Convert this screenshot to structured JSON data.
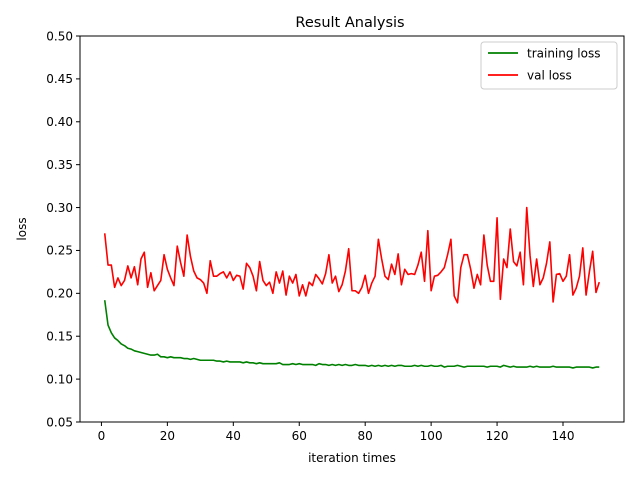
{
  "chart_data": {
    "type": "line",
    "title": "Result Analysis",
    "xlabel": "iteration times",
    "ylabel": "loss",
    "xlim": [
      -6.5,
      158.5
    ],
    "ylim": [
      0.05,
      0.5
    ],
    "xticks": [
      0,
      20,
      40,
      60,
      80,
      100,
      120,
      140
    ],
    "yticks": [
      0.05,
      0.1,
      0.15,
      0.2,
      0.25,
      0.3,
      0.35,
      0.4,
      0.45,
      0.5
    ],
    "ytick_labels": [
      "0.05",
      "0.10",
      "0.15",
      "0.20",
      "0.25",
      "0.30",
      "0.35",
      "0.40",
      "0.45",
      "0.50"
    ],
    "grid": false,
    "legend_position": "top-right",
    "x": [
      1,
      2,
      3,
      4,
      5,
      6,
      7,
      8,
      9,
      10,
      11,
      12,
      13,
      14,
      15,
      16,
      17,
      18,
      19,
      20,
      21,
      22,
      23,
      24,
      25,
      26,
      27,
      28,
      29,
      30,
      31,
      32,
      33,
      34,
      35,
      36,
      37,
      38,
      39,
      40,
      41,
      42,
      43,
      44,
      45,
      46,
      47,
      48,
      49,
      50,
      51,
      52,
      53,
      54,
      55,
      56,
      57,
      58,
      59,
      60,
      61,
      62,
      63,
      64,
      65,
      66,
      67,
      68,
      69,
      70,
      71,
      72,
      73,
      74,
      75,
      76,
      77,
      78,
      79,
      80,
      81,
      82,
      83,
      84,
      85,
      86,
      87,
      88,
      89,
      90,
      91,
      92,
      93,
      94,
      95,
      96,
      97,
      98,
      99,
      100,
      101,
      102,
      103,
      104,
      105,
      106,
      107,
      108,
      109,
      110,
      111,
      112,
      113,
      114,
      115,
      116,
      117,
      118,
      119,
      120,
      121,
      122,
      123,
      124,
      125,
      126,
      127,
      128,
      129,
      130,
      131,
      132,
      133,
      134,
      135,
      136,
      137,
      138,
      139,
      140,
      141,
      142,
      143,
      144,
      145,
      146,
      147,
      148,
      149,
      150,
      151
    ],
    "series": [
      {
        "name": "training loss",
        "color": "#008000",
        "values": [
          0.192,
          0.163,
          0.154,
          0.148,
          0.145,
          0.141,
          0.139,
          0.136,
          0.135,
          0.133,
          0.132,
          0.131,
          0.13,
          0.129,
          0.128,
          0.128,
          0.129,
          0.126,
          0.126,
          0.125,
          0.126,
          0.125,
          0.125,
          0.125,
          0.124,
          0.124,
          0.123,
          0.124,
          0.123,
          0.122,
          0.122,
          0.122,
          0.122,
          0.122,
          0.121,
          0.121,
          0.12,
          0.121,
          0.12,
          0.12,
          0.12,
          0.12,
          0.119,
          0.12,
          0.119,
          0.119,
          0.118,
          0.119,
          0.118,
          0.118,
          0.118,
          0.118,
          0.118,
          0.119,
          0.117,
          0.117,
          0.117,
          0.118,
          0.117,
          0.118,
          0.117,
          0.117,
          0.117,
          0.117,
          0.116,
          0.118,
          0.117,
          0.117,
          0.116,
          0.117,
          0.116,
          0.117,
          0.116,
          0.117,
          0.116,
          0.116,
          0.117,
          0.116,
          0.116,
          0.116,
          0.115,
          0.116,
          0.115,
          0.116,
          0.115,
          0.116,
          0.115,
          0.116,
          0.115,
          0.116,
          0.116,
          0.115,
          0.115,
          0.115,
          0.116,
          0.115,
          0.116,
          0.115,
          0.115,
          0.116,
          0.115,
          0.115,
          0.116,
          0.114,
          0.115,
          0.115,
          0.115,
          0.116,
          0.115,
          0.114,
          0.115,
          0.115,
          0.115,
          0.115,
          0.115,
          0.115,
          0.114,
          0.115,
          0.115,
          0.115,
          0.114,
          0.116,
          0.115,
          0.114,
          0.115,
          0.114,
          0.114,
          0.114,
          0.114,
          0.115,
          0.114,
          0.115,
          0.114,
          0.114,
          0.114,
          0.114,
          0.115,
          0.114,
          0.114,
          0.114,
          0.114,
          0.114,
          0.113,
          0.114,
          0.114,
          0.114,
          0.114,
          0.114,
          0.113,
          0.114,
          0.114
        ]
      },
      {
        "name": "val loss",
        "color": "#ff0000",
        "values": [
          0.27,
          0.233,
          0.233,
          0.207,
          0.218,
          0.209,
          0.215,
          0.232,
          0.218,
          0.231,
          0.21,
          0.24,
          0.248,
          0.207,
          0.224,
          0.203,
          0.209,
          0.215,
          0.245,
          0.228,
          0.218,
          0.209,
          0.255,
          0.236,
          0.22,
          0.268,
          0.243,
          0.226,
          0.218,
          0.216,
          0.212,
          0.2,
          0.238,
          0.22,
          0.22,
          0.223,
          0.225,
          0.218,
          0.225,
          0.215,
          0.221,
          0.22,
          0.205,
          0.235,
          0.23,
          0.22,
          0.203,
          0.237,
          0.215,
          0.209,
          0.213,
          0.2,
          0.225,
          0.212,
          0.226,
          0.198,
          0.22,
          0.212,
          0.222,
          0.197,
          0.21,
          0.197,
          0.213,
          0.209,
          0.222,
          0.217,
          0.211,
          0.223,
          0.245,
          0.212,
          0.22,
          0.202,
          0.21,
          0.226,
          0.252,
          0.203,
          0.203,
          0.2,
          0.207,
          0.221,
          0.2,
          0.212,
          0.22,
          0.263,
          0.24,
          0.22,
          0.216,
          0.234,
          0.222,
          0.246,
          0.21,
          0.228,
          0.222,
          0.223,
          0.222,
          0.233,
          0.248,
          0.214,
          0.273,
          0.203,
          0.22,
          0.221,
          0.225,
          0.23,
          0.245,
          0.263,
          0.197,
          0.189,
          0.23,
          0.245,
          0.245,
          0.228,
          0.206,
          0.222,
          0.21,
          0.268,
          0.233,
          0.214,
          0.214,
          0.288,
          0.193,
          0.24,
          0.23,
          0.275,
          0.237,
          0.232,
          0.248,
          0.21,
          0.3,
          0.244,
          0.208,
          0.24,
          0.21,
          0.218,
          0.235,
          0.26,
          0.19,
          0.222,
          0.223,
          0.214,
          0.22,
          0.245,
          0.198,
          0.206,
          0.22,
          0.253,
          0.198,
          0.225,
          0.249,
          0.201,
          0.213
        ]
      }
    ]
  }
}
